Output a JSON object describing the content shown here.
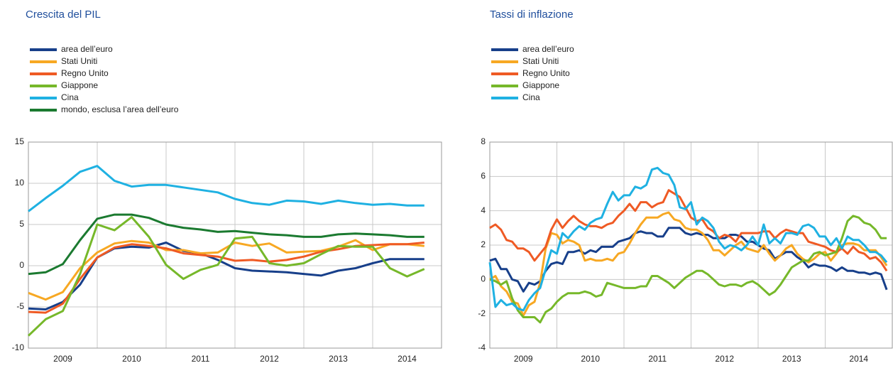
{
  "chart_data": [
    {
      "type": "line",
      "title": "Crescita del PIL",
      "xlim": [
        2009,
        2015
      ],
      "xticks": [
        2009,
        2010,
        2011,
        2012,
        2013,
        2014
      ],
      "ylim": [
        -10,
        15
      ],
      "yticks": [
        -10,
        -5,
        0,
        5,
        10,
        15
      ],
      "grid": true,
      "series": [
        {
          "name": "area dell’euro",
          "color": "#173f8a",
          "values": [
            -5.2,
            -5.3,
            -4.4,
            -2.3,
            1.0,
            2.1,
            2.3,
            2.2,
            2.8,
            1.8,
            1.5,
            0.7,
            -0.3,
            -0.6,
            -0.7,
            -0.8,
            -1.0,
            -1.2,
            -0.6,
            -0.3,
            0.3,
            0.8,
            0.8,
            0.8
          ]
        },
        {
          "name": "Stati Uniti",
          "color": "#f7a823",
          "values": [
            -3.3,
            -4.1,
            -3.2,
            -0.3,
            1.6,
            2.7,
            3.0,
            2.8,
            1.9,
            1.9,
            1.5,
            1.6,
            2.8,
            2.4,
            2.7,
            1.6,
            1.7,
            1.8,
            2.3,
            3.1,
            1.9,
            2.6,
            2.6,
            2.4
          ]
        },
        {
          "name": "Regno Unito",
          "color": "#ef5a24",
          "values": [
            -5.6,
            -5.7,
            -4.6,
            -1.6,
            1.0,
            2.2,
            2.6,
            2.4,
            2.1,
            1.5,
            1.3,
            1.1,
            0.6,
            0.7,
            0.5,
            0.7,
            1.1,
            1.7,
            2.0,
            2.4,
            2.5,
            2.6,
            2.6,
            2.8
          ]
        },
        {
          "name": "Giappone",
          "color": "#76b82a",
          "values": [
            -8.5,
            -6.5,
            -5.5,
            -1.0,
            5.0,
            4.3,
            5.9,
            3.5,
            0.1,
            -1.6,
            -0.5,
            0.1,
            3.3,
            3.5,
            0.3,
            0.0,
            0.3,
            1.4,
            2.4,
            2.3,
            2.3,
            -0.3,
            -1.3,
            -0.4
          ]
        },
        {
          "name": "Cina",
          "color": "#1fb1e2",
          "values": [
            6.6,
            8.2,
            9.7,
            11.4,
            12.1,
            10.3,
            9.6,
            9.8,
            9.8,
            9.5,
            9.2,
            8.9,
            8.1,
            7.6,
            7.4,
            7.9,
            7.8,
            7.5,
            7.9,
            7.6,
            7.4,
            7.5,
            7.3,
            7.3
          ]
        },
        {
          "name": "mondo, esclusa l’area dell’euro",
          "color": "#1b7a30",
          "values": [
            -1.0,
            -0.8,
            0.2,
            3.1,
            5.7,
            6.2,
            6.2,
            5.8,
            5.0,
            4.6,
            4.4,
            4.1,
            4.2,
            4.0,
            3.8,
            3.7,
            3.5,
            3.5,
            3.8,
            3.9,
            3.8,
            3.7,
            3.5,
            3.5
          ]
        }
      ]
    },
    {
      "type": "line",
      "title": "Tassi di inflazione",
      "xlim": [
        2009,
        2015
      ],
      "xticks": [
        2009,
        2010,
        2011,
        2012,
        2013,
        2014
      ],
      "ylim": [
        -4,
        8
      ],
      "yticks": [
        -4,
        -2,
        0,
        2,
        4,
        6,
        8
      ],
      "grid": true,
      "series": [
        {
          "name": "area dell’euro",
          "color": "#173f8a",
          "values": [
            1.1,
            1.2,
            0.6,
            0.6,
            0.0,
            -0.1,
            -0.7,
            -0.2,
            -0.3,
            -0.1,
            0.5,
            0.9,
            1.0,
            0.9,
            1.6,
            1.6,
            1.7,
            1.5,
            1.7,
            1.6,
            1.9,
            1.9,
            1.9,
            2.2,
            2.3,
            2.4,
            2.7,
            2.8,
            2.7,
            2.7,
            2.5,
            2.5,
            3.0,
            3.0,
            3.0,
            2.7,
            2.6,
            2.7,
            2.6,
            2.6,
            2.4,
            2.4,
            2.4,
            2.6,
            2.6,
            2.5,
            2.2,
            2.2,
            2.0,
            1.8,
            1.7,
            1.2,
            1.4,
            1.6,
            1.6,
            1.3,
            1.1,
            0.7,
            0.9,
            0.8,
            0.8,
            0.7,
            0.5,
            0.7,
            0.5,
            0.5,
            0.4,
            0.4,
            0.3,
            0.4,
            0.3,
            -0.6
          ]
        },
        {
          "name": "Stati Uniti",
          "color": "#f7a823",
          "values": [
            0.0,
            0.2,
            -0.4,
            -0.7,
            -1.3,
            -1.4,
            -2.1,
            -1.5,
            -1.3,
            -0.2,
            1.8,
            2.7,
            2.6,
            2.1,
            2.3,
            2.2,
            2.0,
            1.1,
            1.2,
            1.1,
            1.1,
            1.2,
            1.1,
            1.5,
            1.6,
            2.1,
            2.7,
            3.2,
            3.6,
            3.6,
            3.6,
            3.8,
            3.9,
            3.5,
            3.4,
            3.0,
            2.9,
            2.9,
            2.7,
            2.3,
            1.7,
            1.7,
            1.4,
            1.7,
            2.0,
            2.2,
            1.8,
            1.7,
            1.6,
            2.0,
            1.5,
            1.1,
            1.4,
            1.8,
            2.0,
            1.5,
            1.2,
            1.0,
            1.2,
            1.5,
            1.6,
            1.1,
            1.5,
            2.0,
            2.1,
            2.1,
            2.0,
            1.7,
            1.7,
            1.7,
            1.3,
            0.8
          ]
        },
        {
          "name": "Regno Unito",
          "color": "#ef5a24",
          "values": [
            3.0,
            3.2,
            2.9,
            2.3,
            2.2,
            1.8,
            1.8,
            1.6,
            1.1,
            1.5,
            1.9,
            2.9,
            3.5,
            3.0,
            3.4,
            3.7,
            3.4,
            3.2,
            3.1,
            3.1,
            3.0,
            3.2,
            3.3,
            3.7,
            4.0,
            4.4,
            4.0,
            4.5,
            4.5,
            4.2,
            4.4,
            4.5,
            5.2,
            5.0,
            4.8,
            4.2,
            3.6,
            3.4,
            3.5,
            3.0,
            2.8,
            2.4,
            2.6,
            2.5,
            2.2,
            2.7,
            2.7,
            2.7,
            2.7,
            2.8,
            2.8,
            2.4,
            2.7,
            2.9,
            2.8,
            2.7,
            2.7,
            2.2,
            2.1,
            2.0,
            1.9,
            1.7,
            1.6,
            1.8,
            1.5,
            1.9,
            1.6,
            1.5,
            1.2,
            1.3,
            1.0,
            0.5
          ]
        },
        {
          "name": "Giappone",
          "color": "#76b82a",
          "values": [
            0.0,
            -0.1,
            -0.3,
            -0.1,
            -1.1,
            -1.8,
            -2.2,
            -2.2,
            -2.2,
            -2.5,
            -1.9,
            -1.7,
            -1.3,
            -1.0,
            -0.8,
            -0.8,
            -0.8,
            -0.7,
            -0.8,
            -1.0,
            -0.9,
            -0.2,
            -0.3,
            -0.4,
            -0.5,
            -0.5,
            -0.5,
            -0.4,
            -0.4,
            0.2,
            0.2,
            0.0,
            -0.2,
            -0.5,
            -0.2,
            0.1,
            0.3,
            0.5,
            0.5,
            0.3,
            0.0,
            -0.3,
            -0.4,
            -0.3,
            -0.3,
            -0.4,
            -0.2,
            -0.1,
            -0.3,
            -0.6,
            -0.9,
            -0.7,
            -0.3,
            0.2,
            0.7,
            0.9,
            1.1,
            1.1,
            1.5,
            1.6,
            1.4,
            1.5,
            1.6,
            2.4,
            3.4,
            3.7,
            3.6,
            3.3,
            3.2,
            2.9,
            2.4,
            2.4
          ]
        },
        {
          "name": "Cina",
          "color": "#1fb1e2",
          "values": [
            1.0,
            -1.6,
            -1.2,
            -1.5,
            -1.4,
            -1.7,
            -1.8,
            -1.2,
            -0.8,
            -0.5,
            0.6,
            1.7,
            1.5,
            2.7,
            2.4,
            2.8,
            3.1,
            2.9,
            3.3,
            3.5,
            3.6,
            4.4,
            5.1,
            4.6,
            4.9,
            4.9,
            5.4,
            5.3,
            5.5,
            6.4,
            6.5,
            6.2,
            6.1,
            5.5,
            4.2,
            4.1,
            4.5,
            3.2,
            3.6,
            3.4,
            3.0,
            2.2,
            1.8,
            2.0,
            1.9,
            1.7,
            2.0,
            2.5,
            2.0,
            3.2,
            2.1,
            2.4,
            2.1,
            2.7,
            2.7,
            2.6,
            3.1,
            3.2,
            3.0,
            2.5,
            2.5,
            2.0,
            2.4,
            1.8,
            2.5,
            2.3,
            2.3,
            2.0,
            1.6,
            1.6,
            1.4,
            1.0
          ]
        }
      ]
    }
  ]
}
